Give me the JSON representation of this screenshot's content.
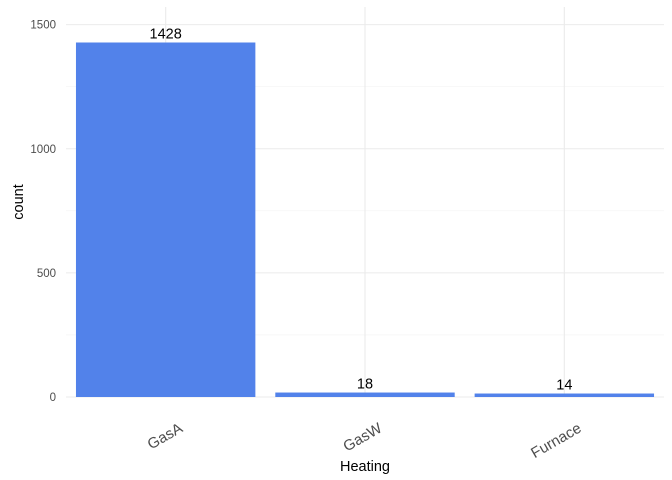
{
  "chart_data": {
    "type": "bar",
    "title": "",
    "xlabel": "Heating",
    "ylabel": "count",
    "categories": [
      "GasA",
      "GasW",
      "Furnace"
    ],
    "values": [
      1428,
      18,
      14
    ],
    "data_labels": [
      "1428",
      "18",
      "14"
    ],
    "yticks": [
      0,
      500,
      1000,
      1500
    ],
    "ytick_labels": [
      "0",
      "500",
      "1000",
      "1500"
    ],
    "ylim": [
      0,
      1571
    ],
    "bar_color": "#5282EA",
    "grid": true,
    "x_tick_rotation_deg": -30,
    "legend": "none"
  }
}
